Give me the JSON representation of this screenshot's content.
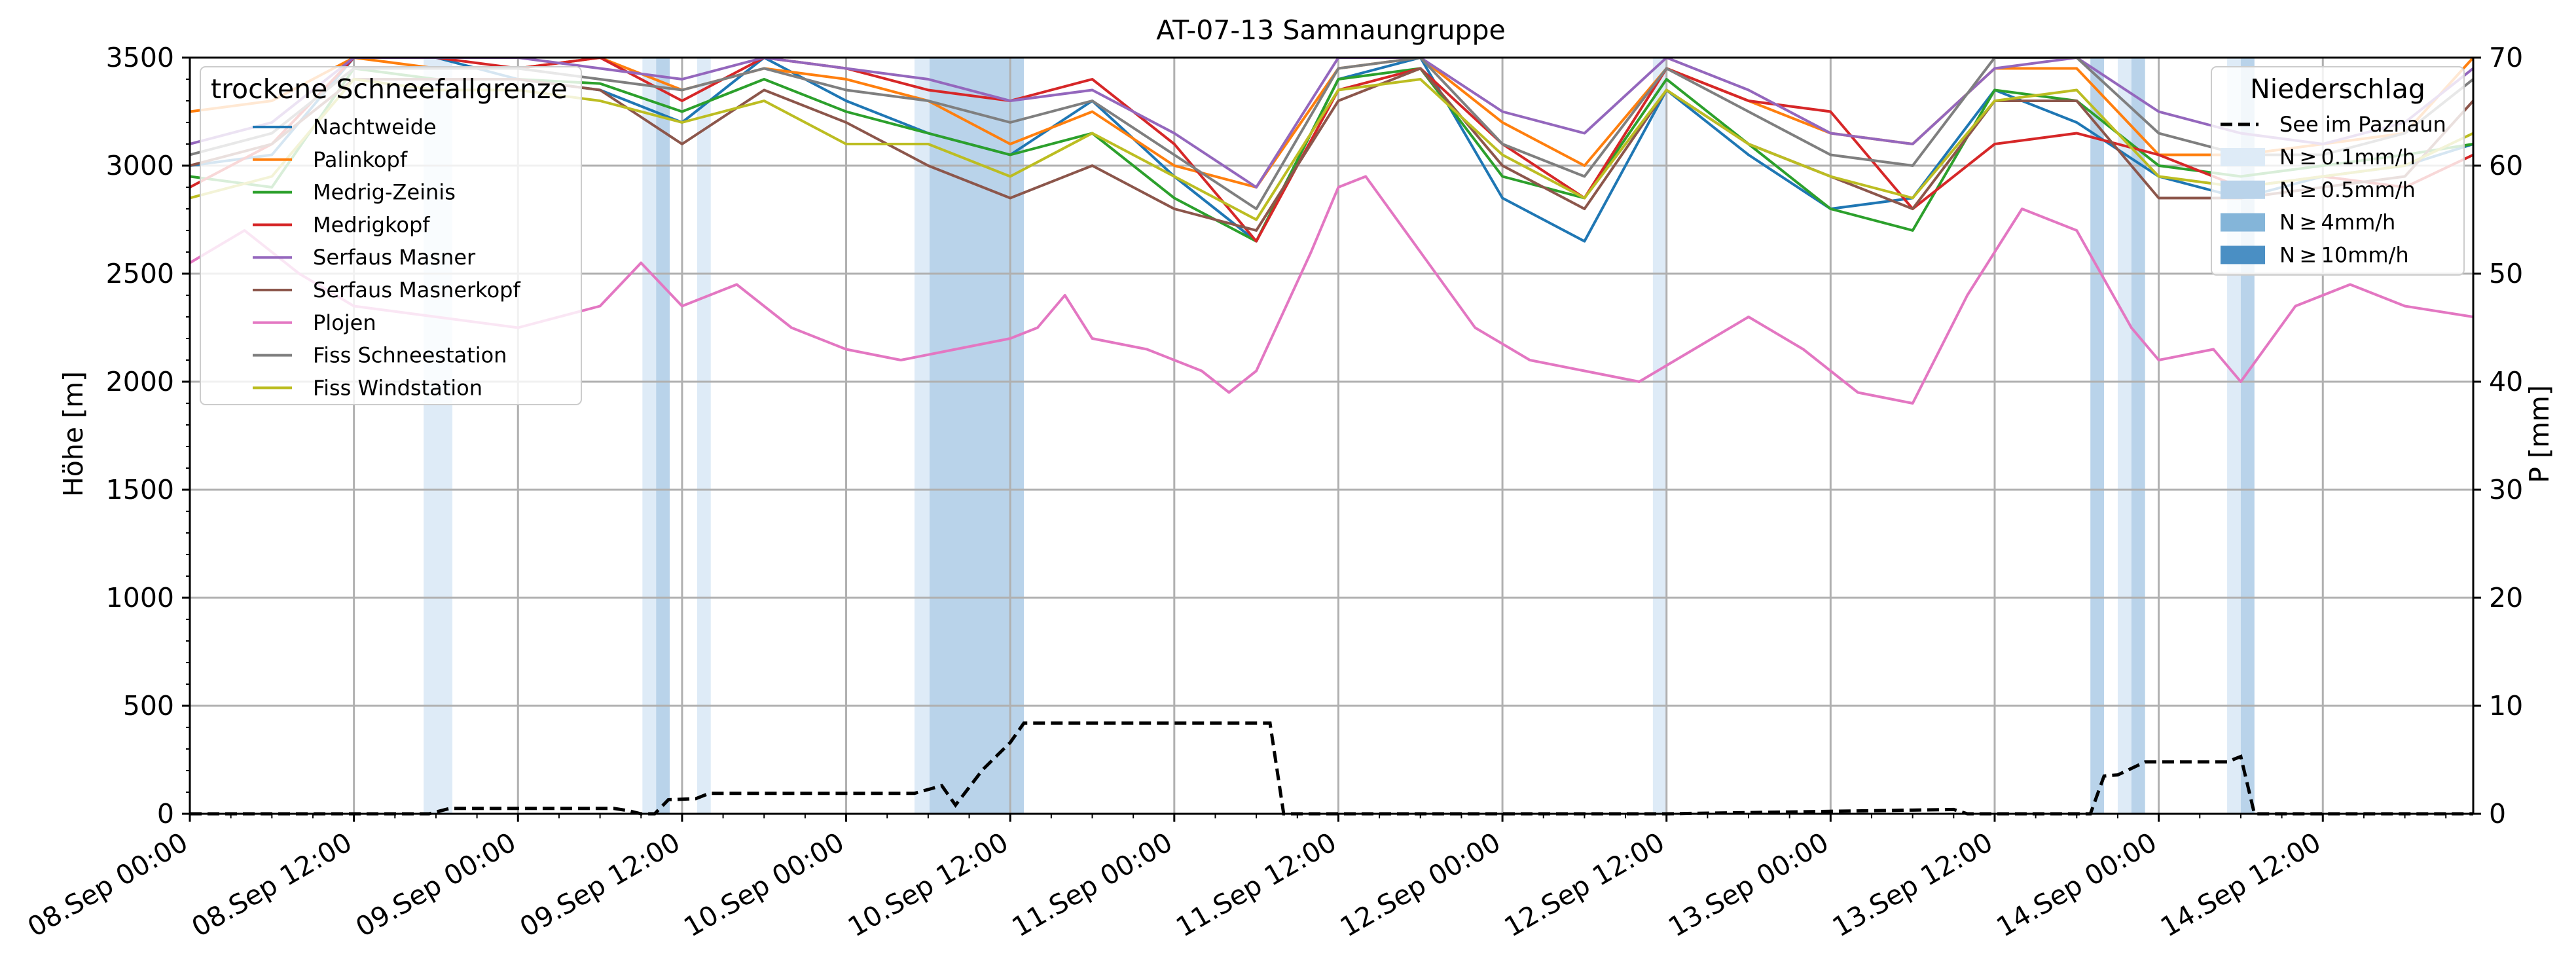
{
  "chart_data": {
    "type": "line",
    "title": "AT-07-13 Samnaungruppe",
    "ylabel_left": "Höhe [m]",
    "ylabel_right": "P [mm]",
    "ylim_left": [
      0,
      3500
    ],
    "ylim_right": [
      0,
      70
    ],
    "y_ticks_left": [
      0,
      500,
      1000,
      1500,
      2000,
      2500,
      3000,
      3500
    ],
    "y_ticks_right": [
      0,
      10,
      20,
      30,
      40,
      50,
      60,
      70
    ],
    "x_range_hours": [
      0,
      167
    ],
    "x_tick_hours": [
      0,
      12,
      24,
      36,
      48,
      60,
      72,
      84,
      96,
      108,
      120,
      132,
      144,
      156
    ],
    "x_tick_labels": [
      "08.Sep 00:00",
      "08.Sep 12:00",
      "09.Sep 00:00",
      "09.Sep 12:00",
      "10.Sep 00:00",
      "10.Sep 12:00",
      "11.Sep 00:00",
      "11.Sep 12:00",
      "12.Sep 00:00",
      "12.Sep 12:00",
      "13.Sep 00:00",
      "13.Sep 12:00",
      "14.Sep 00:00",
      "14.Sep 12:00"
    ],
    "grid": true,
    "legend_snow": {
      "title": "trockene Schneefallgrenze",
      "placement": "top-left",
      "entries": [
        "Nachtweide",
        "Palinkopf",
        "Medrig-Zeinis",
        "Medrigkopf",
        "Serfaus Masner",
        "Serfaus Masnerkopf",
        "Plojen",
        "Fiss Schneestation",
        "Fiss Windstation"
      ]
    },
    "legend_precip": {
      "title": "Niederschlag",
      "placement": "top-right",
      "line_label": "See im Paznaun",
      "band_labels": [
        "N ≥ 0.1mm/h",
        "N ≥ 0.5mm/h",
        "N ≥ 4mm/h",
        "N ≥ 10mm/h"
      ],
      "band_colors": [
        "#deebf7",
        "#b9d3ea",
        "#84b5d9",
        "#4a8fc4"
      ]
    },
    "precip_bands": [
      {
        "start": 17.1,
        "end": 19.2,
        "level": 0
      },
      {
        "start": 33.1,
        "end": 34.1,
        "level": 0
      },
      {
        "start": 34.1,
        "end": 35.1,
        "level": 1
      },
      {
        "start": 37.1,
        "end": 38.1,
        "level": 0
      },
      {
        "start": 53.0,
        "end": 54.1,
        "level": 0
      },
      {
        "start": 54.1,
        "end": 61.0,
        "level": 1
      },
      {
        "start": 107.0,
        "end": 108.0,
        "level": 0
      },
      {
        "start": 139.0,
        "end": 140.0,
        "level": 1
      },
      {
        "start": 141.0,
        "end": 142.0,
        "level": 0
      },
      {
        "start": 142.0,
        "end": 143.0,
        "level": 1
      },
      {
        "start": 149.0,
        "end": 150.0,
        "level": 0
      },
      {
        "start": 150.0,
        "end": 151.0,
        "level": 1
      }
    ],
    "precip_series": {
      "name": "See im Paznaun",
      "x": [
        0,
        17.5,
        19,
        31,
        32,
        33,
        34,
        35,
        37,
        38,
        53,
        55,
        56,
        58,
        60,
        61,
        79,
        80,
        108,
        129,
        130,
        139,
        140,
        141,
        143,
        149,
        150,
        151,
        167
      ],
      "y": [
        0,
        0,
        0.5,
        0.5,
        0.3,
        0,
        0,
        1.3,
        1.4,
        1.9,
        1.9,
        2.6,
        0.8,
        4.1,
        6.6,
        8.4,
        8.4,
        0,
        0,
        0.4,
        0,
        0,
        3.5,
        3.6,
        4.8,
        4.8,
        5.3,
        0,
        0
      ]
    },
    "series": [
      {
        "name": "Nachtweide",
        "color": "#1f77b4",
        "x": [
          0,
          6,
          12,
          18,
          24,
          30,
          36,
          42,
          48,
          54,
          60,
          66,
          72,
          78,
          84,
          90,
          96,
          102,
          108,
          114,
          120,
          126,
          132,
          138,
          144,
          150,
          156,
          162,
          167
        ],
        "y": [
          3000,
          3050,
          3500,
          3500,
          3400,
          3350,
          3200,
          3500,
          3300,
          3150,
          3050,
          3300,
          2950,
          2650,
          3400,
          3500,
          2850,
          2650,
          3350,
          3050,
          2800,
          2850,
          3350,
          3200,
          2950,
          2850,
          2950,
          3000,
          3100
        ]
      },
      {
        "name": "Palinkopf",
        "color": "#ff7f0e",
        "x": [
          0,
          6,
          12,
          18,
          24,
          30,
          36,
          42,
          48,
          54,
          60,
          66,
          72,
          78,
          84,
          90,
          96,
          102,
          108,
          114,
          120,
          126,
          132,
          138,
          144,
          150,
          156,
          162,
          167
        ],
        "y": [
          3250,
          3300,
          3500,
          3450,
          3450,
          3500,
          3350,
          3450,
          3400,
          3300,
          3100,
          3250,
          3000,
          2900,
          3450,
          3500,
          3200,
          3000,
          3450,
          3300,
          3150,
          3100,
          3450,
          3450,
          3050,
          3050,
          3100,
          3150,
          3500
        ]
      },
      {
        "name": "Medrig-Zeinis",
        "color": "#2ca02c",
        "x": [
          0,
          6,
          12,
          18,
          24,
          30,
          36,
          42,
          48,
          54,
          60,
          66,
          72,
          78,
          84,
          90,
          96,
          102,
          108,
          114,
          120,
          126,
          132,
          138,
          144,
          150,
          156,
          162,
          167
        ],
        "y": [
          2950,
          2900,
          3450,
          3400,
          3400,
          3380,
          3250,
          3400,
          3250,
          3150,
          3050,
          3150,
          2850,
          2650,
          3400,
          3450,
          2950,
          2850,
          3400,
          3100,
          2800,
          2700,
          3350,
          3300,
          3000,
          2950,
          3000,
          3050,
          3100
        ]
      },
      {
        "name": "Medrigkopf",
        "color": "#d62728",
        "x": [
          0,
          6,
          12,
          18,
          24,
          30,
          36,
          42,
          48,
          54,
          60,
          66,
          72,
          78,
          84,
          90,
          96,
          102,
          108,
          114,
          120,
          126,
          132,
          138,
          144,
          150,
          156,
          162,
          167
        ],
        "y": [
          2900,
          3100,
          3500,
          3500,
          3450,
          3500,
          3300,
          3500,
          3450,
          3350,
          3300,
          3400,
          3100,
          2650,
          3350,
          3450,
          3100,
          2850,
          3450,
          3300,
          3250,
          2800,
          3100,
          3150,
          3050,
          2900,
          2950,
          2900,
          3050
        ]
      },
      {
        "name": "Serfaus Masner",
        "color": "#9467bd",
        "x": [
          0,
          6,
          12,
          18,
          24,
          30,
          36,
          42,
          48,
          54,
          60,
          66,
          72,
          78,
          84,
          90,
          96,
          102,
          108,
          114,
          120,
          126,
          132,
          138,
          144,
          150,
          156,
          162,
          167
        ],
        "y": [
          3100,
          3200,
          3500,
          3500,
          3500,
          3450,
          3400,
          3500,
          3450,
          3400,
          3300,
          3350,
          3150,
          2900,
          3500,
          3500,
          3250,
          3150,
          3500,
          3350,
          3150,
          3100,
          3450,
          3500,
          3250,
          3150,
          3100,
          3200,
          3450
        ]
      },
      {
        "name": "Serfaus Masnerkopf",
        "color": "#8c564b",
        "x": [
          0,
          6,
          12,
          18,
          24,
          30,
          36,
          42,
          48,
          54,
          60,
          66,
          72,
          78,
          84,
          90,
          96,
          102,
          108,
          114,
          120,
          126,
          132,
          138,
          144,
          150,
          156,
          162,
          167
        ],
        "y": [
          3000,
          3100,
          3400,
          3400,
          3400,
          3350,
          3100,
          3350,
          3200,
          3000,
          2850,
          3000,
          2800,
          2700,
          3300,
          3450,
          3000,
          2800,
          3350,
          3100,
          2950,
          2800,
          3300,
          3300,
          2850,
          2850,
          2900,
          2950,
          3300
        ]
      },
      {
        "name": "Plojen",
        "color": "#e377c2",
        "x": [
          0,
          4,
          8,
          12,
          18,
          24,
          30,
          33,
          36,
          40,
          44,
          48,
          52,
          56,
          60,
          62,
          64,
          66,
          70,
          74,
          76,
          78,
          82,
          84,
          86,
          90,
          94,
          98,
          102,
          106,
          110,
          114,
          118,
          122,
          126,
          130,
          134,
          138,
          142,
          144,
          148,
          150,
          154,
          158,
          162,
          167
        ],
        "y": [
          2550,
          2700,
          2500,
          2350,
          2300,
          2250,
          2350,
          2550,
          2350,
          2450,
          2250,
          2150,
          2100,
          2150,
          2200,
          2250,
          2400,
          2200,
          2150,
          2050,
          1950,
          2050,
          2600,
          2900,
          2950,
          2600,
          2250,
          2100,
          2050,
          2000,
          2150,
          2300,
          2150,
          1950,
          1900,
          2400,
          2800,
          2700,
          2250,
          2100,
          2150,
          2000,
          2350,
          2450,
          2350,
          2300
        ]
      },
      {
        "name": "Fiss Schneestation",
        "color": "#7f7f7f",
        "x": [
          0,
          6,
          12,
          18,
          24,
          30,
          36,
          42,
          48,
          54,
          60,
          66,
          72,
          78,
          84,
          90,
          96,
          102,
          108,
          114,
          120,
          126,
          132,
          138,
          144,
          150,
          156,
          162,
          167
        ],
        "y": [
          3050,
          3150,
          3450,
          3450,
          3450,
          3400,
          3350,
          3450,
          3350,
          3300,
          3200,
          3300,
          3050,
          2800,
          3450,
          3500,
          3100,
          2950,
          3450,
          3250,
          3050,
          3000,
          3500,
          3500,
          3150,
          3050,
          3050,
          3150,
          3400
        ]
      },
      {
        "name": "Fiss Windstation",
        "color": "#bcbd22",
        "x": [
          0,
          6,
          12,
          18,
          24,
          30,
          36,
          42,
          48,
          54,
          60,
          66,
          72,
          78,
          84,
          90,
          96,
          102,
          108,
          114,
          120,
          126,
          132,
          138,
          144,
          150,
          156,
          162,
          167
        ],
        "y": [
          2850,
          2950,
          3400,
          3350,
          3350,
          3300,
          3200,
          3300,
          3100,
          3100,
          2950,
          3150,
          2950,
          2750,
          3350,
          3400,
          3050,
          2850,
          3350,
          3100,
          2950,
          2850,
          3300,
          3350,
          2950,
          2900,
          2950,
          3000,
          3150
        ]
      }
    ]
  }
}
